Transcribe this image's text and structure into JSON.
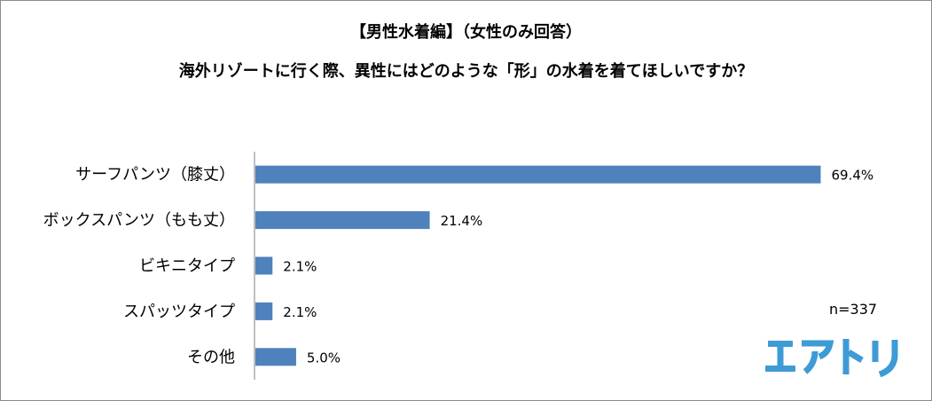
{
  "header": {
    "title": "【男性水着編】（女性のみ回答）",
    "subtitle": "海外リゾートに行く際、異性にはどのような「形」の水着を着てほしいですか？"
  },
  "chart_data": {
    "type": "bar",
    "orientation": "horizontal",
    "title": "【男性水着編】（女性のみ回答）",
    "subtitle": "海外リゾートに行く際、異性にはどのような「形」の水着を着てほしいですか？",
    "categories": [
      "サーフパンツ（膝丈）",
      "ボックスパンツ（もも丈）",
      "ビキニタイプ",
      "スパッツタイプ",
      "その他"
    ],
    "values": [
      69.4,
      21.4,
      2.1,
      2.1,
      5.0
    ],
    "value_labels": [
      "69.4%",
      "21.4%",
      "2.1%",
      "2.1%",
      "5.0%"
    ],
    "xlim": [
      0,
      70
    ],
    "grid": false,
    "bar_color": "#4f81bd"
  },
  "note": {
    "sample_size": "n=337"
  },
  "logo": {
    "text": "エアトリ",
    "color": "#3d9bd6"
  }
}
